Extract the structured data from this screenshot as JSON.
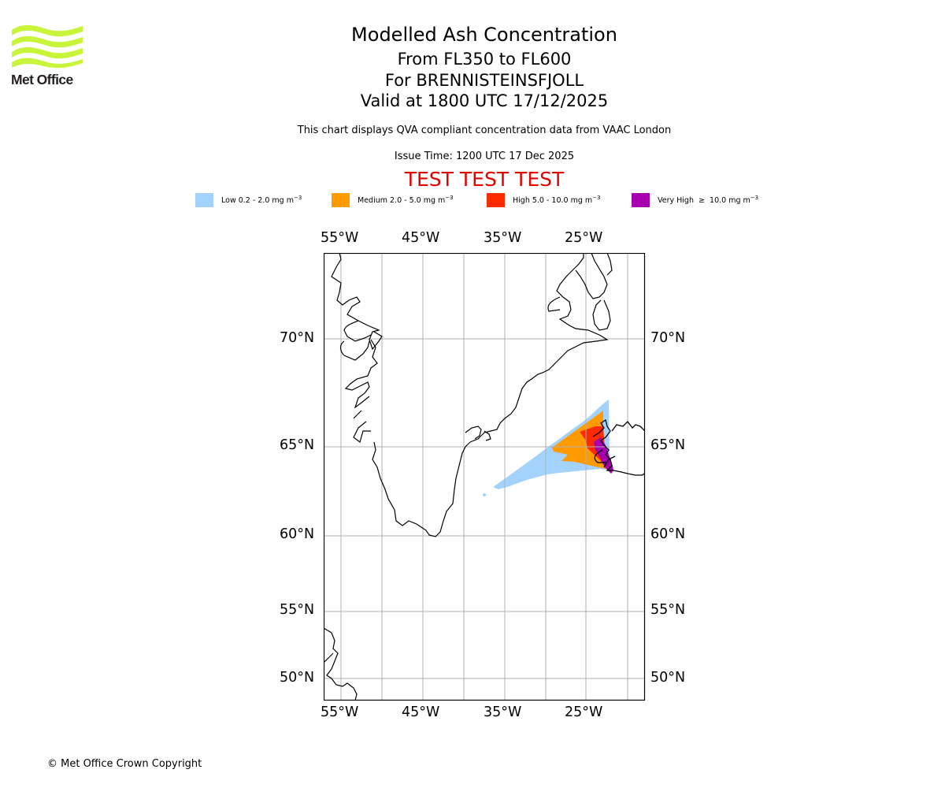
{
  "header": {
    "logo_text": "Met Office",
    "title": "Modelled Ash Concentration",
    "levels": "From FL350 to FL600",
    "volcano": "For BRENNISTEINSFJOLL",
    "valid": "Valid at 1800 UTC 17/12/2025",
    "note": "This chart displays QVA compliant concentration data from VAAC London",
    "issue_time": "Issue Time: 1200 UTC 17 Dec 2025",
    "test_banner": "TEST TEST TEST"
  },
  "legend": [
    {
      "label": "Low 0.2 - 2.0 mg m",
      "exp": "−3",
      "color": "#a3d3fc"
    },
    {
      "label": "Medium 2.0 - 5.0 mg m",
      "exp": "−3",
      "color": "#ff9b00"
    },
    {
      "label": "High 5.0 - 10.0 mg m",
      "exp": "−3",
      "color": "#ff2b00"
    },
    {
      "label": "Very High  ≥  10.0 mg m",
      "exp": "−3",
      "color": "#a700b0"
    }
  ],
  "axes": {
    "lon_ticks_top": [
      "55°W",
      "45°W",
      "35°W",
      "25°W"
    ],
    "lon_ticks_bottom": [
      "55°W",
      "45°W",
      "35°W",
      "25°W"
    ],
    "lat_ticks_left": [
      "70°N",
      "65°N",
      "60°N",
      "55°N",
      "50°N"
    ],
    "lat_ticks_right": [
      "70°N",
      "65°N",
      "60°N",
      "55°N",
      "50°N"
    ]
  },
  "footer": {
    "copyright": "© Met Office Crown Copyright"
  },
  "colors": {
    "test_banner": "#e00000",
    "gridline": "#b0b0b0",
    "coastline": "#000000"
  }
}
